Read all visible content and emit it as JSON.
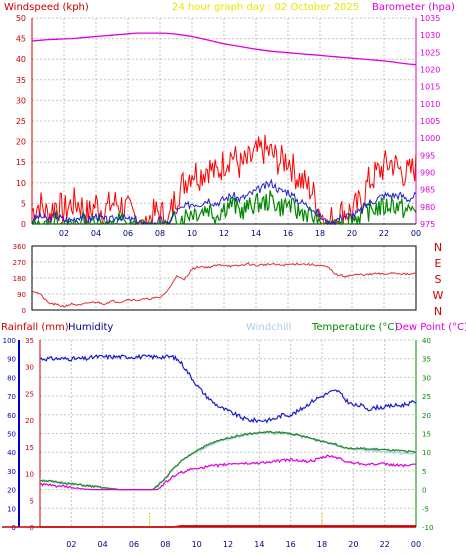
{
  "header": {
    "title": "24 hour graph day : 02 October 2025",
    "windspeed_label": "Windspeed (kph)",
    "barometer_label": "Barometer (hpa)"
  },
  "lower_header": {
    "rainfall_label": "Rainfall (mm)",
    "humidity_label": "Humidity",
    "windchill_label": "Windchill",
    "temperature_label": "Temperature (°C)",
    "dewpoint_label": "Dew Point (°C)"
  },
  "colors": {
    "windspeed": "#dd0000",
    "gust": "#ff0000",
    "windavg": "#2222cc",
    "windlow": "#008800",
    "barometer": "#dd00dd",
    "direction": "#dd3333",
    "humidity": "#1c1ccc",
    "temperature": "#2a8a2a",
    "windchill": "#a8d0e8",
    "dewpoint": "#dd00dd",
    "rainfall": "#cc0000",
    "title": "#e6e600",
    "gridline": "#c4c4c4",
    "time_labels": "#000080",
    "humidity_axis": "#0000cc",
    "temperature_axis": "#008800",
    "rain_axis": "#cc0000"
  },
  "chart_data": [
    {
      "id": "wind_baro",
      "type": "line",
      "x": [
        0,
        0.5,
        1,
        1.5,
        2,
        2.5,
        3,
        3.5,
        4,
        4.5,
        5,
        5.5,
        6,
        6.5,
        7,
        7.5,
        8,
        8.5,
        9,
        9.5,
        10,
        10.5,
        11,
        11.5,
        12,
        12.5,
        13,
        13.5,
        14,
        14.5,
        15,
        15.5,
        16,
        16.5,
        17,
        17.5,
        18,
        18.5,
        19,
        19.5,
        20,
        20.5,
        21,
        21.5,
        22,
        22.5,
        23,
        23.5,
        24
      ],
      "xticks": [
        "02",
        "04",
        "06",
        "08",
        "10",
        "12",
        "14",
        "16",
        "18",
        "20",
        "22",
        "00"
      ],
      "xtick_positions": [
        2,
        4,
        6,
        8,
        10,
        12,
        14,
        16,
        18,
        20,
        22,
        24
      ],
      "ylim_left": [
        0,
        50
      ],
      "yticks_left": [
        "0",
        "5",
        "10",
        "15",
        "20",
        "25",
        "30",
        "35",
        "40",
        "45",
        "50"
      ],
      "ylim_right": [
        975,
        1035
      ],
      "yticks_right": [
        "975",
        "980",
        "985",
        "990",
        "995",
        "1000",
        "1005",
        "1010",
        "1015",
        "1020",
        "1025",
        "1030",
        "1035"
      ],
      "series": [
        {
          "key": "gust",
          "values": [
            3,
            5,
            2,
            5,
            3,
            5,
            5,
            2,
            5,
            3,
            5,
            5,
            3,
            2,
            0,
            2,
            3,
            0,
            7,
            10,
            13,
            12,
            14,
            12,
            15,
            17,
            14,
            15,
            17,
            18,
            17,
            15,
            16,
            12,
            10,
            8,
            3,
            0,
            2,
            3,
            3,
            5,
            10,
            12,
            14,
            15,
            13,
            12,
            14
          ]
        },
        {
          "key": "windavg",
          "values": [
            1,
            2,
            1,
            2,
            1,
            1,
            2,
            1,
            2,
            1,
            1,
            2,
            1,
            1,
            0,
            0,
            1,
            0,
            3,
            4,
            5,
            5,
            6,
            5,
            6,
            7,
            6,
            7,
            8,
            9,
            10,
            8,
            8,
            6,
            5,
            4,
            2,
            0,
            1,
            2,
            2,
            3,
            5,
            6,
            7,
            7,
            7,
            6,
            7
          ]
        },
        {
          "key": "windlow",
          "values": [
            0,
            0,
            0,
            1,
            0,
            0,
            1,
            0,
            1,
            0,
            0,
            1,
            0,
            0,
            0,
            0,
            0,
            0,
            1,
            2,
            3,
            3,
            4,
            2,
            4,
            5,
            3,
            4,
            5,
            5,
            6,
            4,
            5,
            3,
            3,
            2,
            0,
            0,
            0,
            1,
            1,
            2,
            3,
            4,
            4,
            5,
            4,
            3,
            4
          ]
        },
        {
          "key": "barometer",
          "values": [
            1028.3,
            1028.5,
            1028.7,
            1028.8,
            1028.9,
            1029.0,
            1029.2,
            1029.4,
            1029.6,
            1029.8,
            1030.0,
            1030.2,
            1030.4,
            1030.6,
            1030.6,
            1030.6,
            1030.6,
            1030.5,
            1030.3,
            1030.0,
            1029.6,
            1029.1,
            1028.6,
            1028.0,
            1027.5,
            1027.1,
            1026.7,
            1026.3,
            1025.9,
            1025.6,
            1025.3,
            1025.1,
            1024.9,
            1024.7,
            1024.5,
            1024.3,
            1024.1,
            1023.9,
            1023.7,
            1023.5,
            1023.3,
            1023.1,
            1022.9,
            1022.7,
            1022.5,
            1022.2,
            1021.9,
            1021.6,
            1021.4
          ]
        }
      ]
    },
    {
      "id": "direction",
      "type": "line",
      "x": [
        0,
        0.5,
        1,
        1.5,
        2,
        2.5,
        3,
        3.5,
        4,
        4.5,
        5,
        5.5,
        6,
        6.5,
        7,
        7.5,
        8,
        8.5,
        9,
        9.5,
        10,
        10.5,
        11,
        11.5,
        12,
        12.5,
        13,
        13.5,
        14,
        14.5,
        15,
        15.5,
        16,
        16.5,
        17,
        17.5,
        18,
        18.5,
        19,
        19.5,
        20,
        20.5,
        21,
        21.5,
        22,
        22.5,
        23,
        23.5,
        24
      ],
      "ylim": [
        0,
        360
      ],
      "yticks_left": [
        "0",
        "90",
        "180",
        "270",
        "360"
      ],
      "yticks_right": [
        "N",
        "E",
        "S",
        "W",
        "N"
      ],
      "values": [
        110,
        90,
        40,
        30,
        20,
        35,
        25,
        40,
        45,
        35,
        50,
        45,
        60,
        55,
        60,
        65,
        70,
        110,
        190,
        170,
        230,
        245,
        240,
        250,
        255,
        245,
        250,
        260,
        250,
        255,
        258,
        252,
        255,
        260,
        258,
        255,
        250,
        240,
        200,
        190,
        195,
        200,
        198,
        205,
        200,
        210,
        205,
        200,
        205
      ]
    },
    {
      "id": "temp_humidity",
      "type": "line",
      "x": [
        0,
        0.5,
        1,
        1.5,
        2,
        2.5,
        3,
        3.5,
        4,
        4.5,
        5,
        5.5,
        6,
        6.5,
        7,
        7.5,
        8,
        8.5,
        9,
        9.5,
        10,
        10.5,
        11,
        11.5,
        12,
        12.5,
        13,
        13.5,
        14,
        14.5,
        15,
        15.5,
        16,
        16.5,
        17,
        17.5,
        18,
        18.5,
        19,
        19.5,
        20,
        20.5,
        21,
        21.5,
        22,
        22.5,
        23,
        23.5,
        24
      ],
      "ylim_humidity": [
        0,
        100
      ],
      "yticks_humidity": [
        "0",
        "10",
        "20",
        "30",
        "40",
        "50",
        "60",
        "70",
        "80",
        "90",
        "100"
      ],
      "ylim_rain": [
        0,
        35
      ],
      "yticks_rain": [
        "0",
        "5",
        "10",
        "15",
        "20",
        "25",
        "30",
        "35"
      ],
      "ylim_temp": [
        -10,
        40
      ],
      "yticks_temp": [
        "-10",
        "-5",
        "0",
        "5",
        "10",
        "15",
        "20",
        "25",
        "30",
        "35",
        "40"
      ],
      "series": [
        {
          "key": "humidity",
          "axis": "humidity",
          "values": [
            90,
            90,
            90,
            90,
            90,
            90,
            90,
            91,
            91,
            91,
            91,
            91,
            91,
            91,
            91,
            91,
            91,
            91,
            88,
            82,
            76,
            71,
            67,
            64,
            62,
            60,
            58,
            57,
            57,
            57,
            58,
            60,
            60,
            62,
            65,
            68,
            70,
            72,
            73,
            68,
            65,
            65,
            63,
            64,
            64,
            65,
            65,
            66,
            67
          ]
        },
        {
          "key": "temperature",
          "axis": "temp",
          "values": [
            2.5,
            2.3,
            2.0,
            1.8,
            1.5,
            1.3,
            1.0,
            0.8,
            0.5,
            0.3,
            0.0,
            -0.2,
            -0.3,
            -0.5,
            -0.5,
            1.0,
            3.0,
            5.5,
            7.5,
            9.0,
            10.5,
            11.5,
            12.5,
            13.2,
            13.8,
            14.3,
            14.7,
            15.0,
            15.2,
            15.4,
            15.3,
            15.2,
            15.0,
            14.5,
            14.0,
            13.5,
            13.0,
            12.5,
            12.0,
            11.2,
            11.0,
            11.0,
            10.8,
            10.8,
            10.6,
            10.5,
            10.3,
            10.2,
            10.0
          ]
        },
        {
          "key": "windchill",
          "axis": "temp",
          "values": [
            2.5,
            2.3,
            2.0,
            1.8,
            1.5,
            1.3,
            1.0,
            0.8,
            0.5,
            0.3,
            0.0,
            -0.2,
            -0.3,
            -0.5,
            -0.5,
            1.0,
            3.0,
            5.5,
            7.5,
            9.0,
            10.3,
            11.2,
            12.2,
            12.9,
            13.5,
            14.0,
            14.5,
            14.8,
            15.0,
            15.2,
            15.1,
            15.0,
            14.8,
            14.3,
            13.8,
            13.3,
            12.8,
            12.3,
            11.8,
            11.0,
            10.8,
            10.7,
            10.5,
            10.4,
            10.2,
            10.0,
            9.8,
            9.7,
            9.5
          ]
        },
        {
          "key": "dewpoint",
          "axis": "temp",
          "values": [
            1.5,
            1.2,
            1.0,
            0.8,
            0.5,
            0.3,
            0.0,
            -0.2,
            -0.5,
            -0.8,
            -1.0,
            -1.2,
            -1.4,
            -1.5,
            -1.5,
            0.0,
            1.8,
            3.5,
            4.5,
            5.2,
            5.8,
            6.0,
            6.3,
            6.5,
            6.8,
            7.0,
            7.0,
            7.0,
            7.2,
            7.3,
            7.5,
            7.8,
            8.0,
            7.8,
            7.5,
            7.8,
            8.5,
            9.0,
            8.5,
            7.5,
            7.2,
            7.0,
            6.8,
            6.8,
            6.8,
            6.6,
            6.5,
            6.5,
            6.5
          ]
        },
        {
          "key": "rainfall",
          "axis": "rain",
          "values": [
            0,
            0,
            0,
            0,
            0,
            0,
            0,
            0,
            0,
            0,
            0,
            0,
            0,
            0,
            0,
            0,
            0,
            0,
            0.2,
            0.2,
            0.2,
            0.2,
            0.2,
            0.2,
            0.2,
            0.2,
            0.2,
            0.2,
            0.2,
            0.2,
            0.2,
            0.2,
            0.2,
            0.2,
            0.2,
            0.2,
            0.2,
            0.2,
            0.2,
            0.2,
            0.2,
            0.2,
            0.2,
            0.2,
            0.2,
            0.2,
            0.2,
            0.2,
            0.2
          ]
        }
      ]
    }
  ]
}
